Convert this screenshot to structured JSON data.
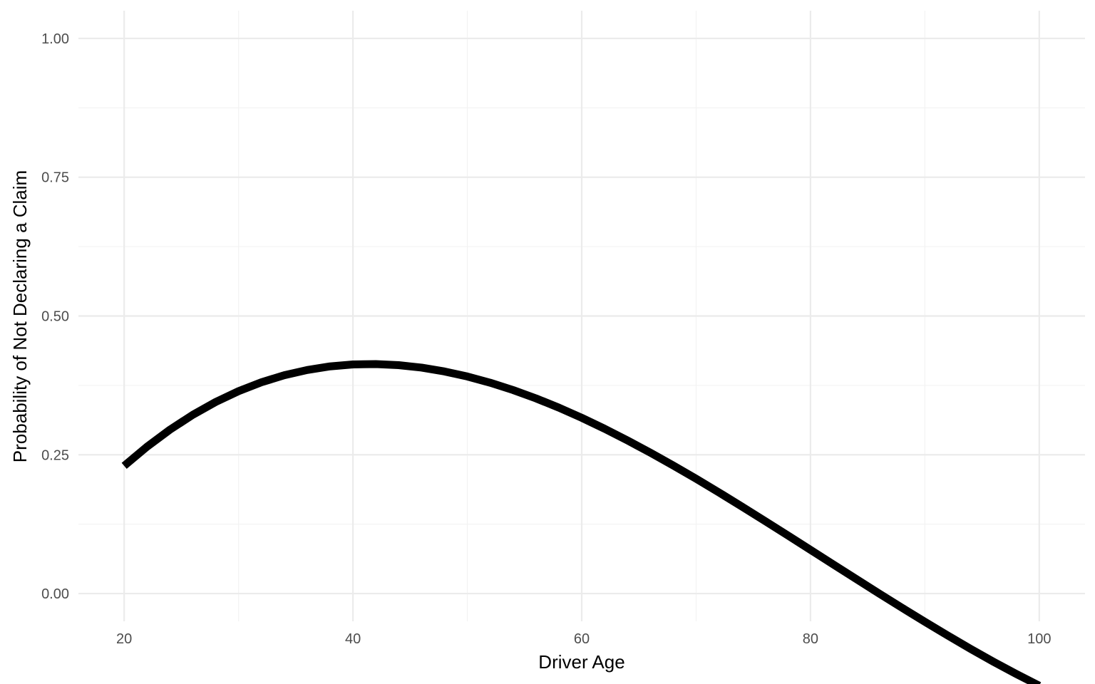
{
  "chart_data": {
    "type": "line",
    "title": "",
    "xlabel": "Driver Age",
    "ylabel": "Probability of Not Declaring a Claim",
    "xlim": [
      16,
      104
    ],
    "ylim": [
      -0.05,
      1.05
    ],
    "x_ticks": [
      20,
      40,
      60,
      80,
      100
    ],
    "x_tick_labels": [
      "20",
      "40",
      "60",
      "80",
      "100"
    ],
    "x_minor_ticks": [
      30,
      50,
      70,
      90
    ],
    "y_ticks": [
      0,
      0.25,
      0.5,
      0.75,
      1
    ],
    "y_tick_labels": [
      "0.00",
      "0.25",
      "0.50",
      "0.75",
      "1.00"
    ],
    "y_minor_ticks": [
      0.125,
      0.375,
      0.625,
      0.875
    ],
    "grid": true,
    "legend": "none",
    "line_color": "#000000",
    "series": [
      {
        "x": [
          20,
          22,
          24,
          26,
          28,
          30,
          32,
          34,
          36,
          38,
          40,
          42,
          44,
          46,
          48,
          50,
          52,
          54,
          56,
          58,
          60,
          62,
          64,
          66,
          68,
          70,
          72,
          74,
          76,
          78,
          80,
          82,
          84,
          86,
          88,
          90,
          92,
          94,
          96,
          98,
          100
        ],
        "y": [
          0.23,
          0.2646,
          0.2952,
          0.322,
          0.3451,
          0.3646,
          0.3806,
          0.3933,
          0.4027,
          0.4092,
          0.4127,
          0.4134,
          0.4114,
          0.407,
          0.4001,
          0.391,
          0.3798,
          0.3666,
          0.3516,
          0.3349,
          0.3166,
          0.2969,
          0.2759,
          0.2538,
          0.2307,
          0.2068,
          0.1821,
          0.1568,
          0.131,
          0.105,
          0.0787,
          0.0524,
          0.0262,
          0.0001,
          -0.0256,
          -0.0509,
          -0.0756,
          -0.0997,
          -0.1229,
          -0.145,
          -0.166
        ]
      }
    ]
  }
}
